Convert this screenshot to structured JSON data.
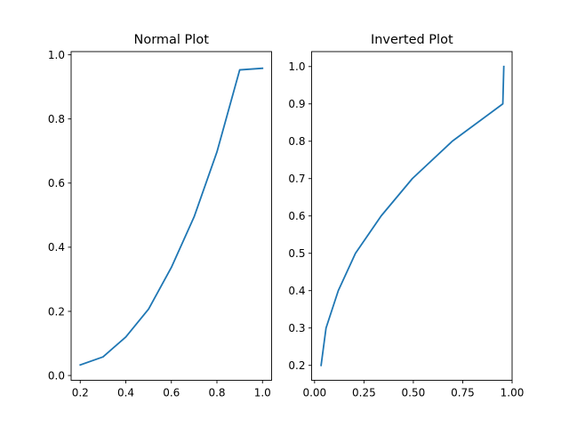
{
  "chart_data": [
    {
      "type": "line",
      "title": "Normal Plot",
      "xlabel": "",
      "ylabel": "",
      "xlim": [
        0.16,
        1.04
      ],
      "ylim": [
        -0.015,
        1.01
      ],
      "xticks": [
        0.2,
        0.4,
        0.6,
        0.8,
        1.0
      ],
      "xtick_labels": [
        "0.2",
        "0.4",
        "0.6",
        "0.8",
        "1.0"
      ],
      "yticks": [
        0.0,
        0.2,
        0.4,
        0.6,
        0.8,
        1.0
      ],
      "ytick_labels": [
        "0.0",
        "0.2",
        "0.4",
        "0.6",
        "0.8",
        "1.0"
      ],
      "grid": false,
      "series": [
        {
          "color": "#1f77b4",
          "x": [
            0.2,
            0.3,
            0.4,
            0.5,
            0.6,
            0.7,
            0.8,
            0.9,
            1.0
          ],
          "y": [
            0.033,
            0.058,
            0.12,
            0.207,
            0.337,
            0.495,
            0.697,
            0.953,
            0.958
          ]
        }
      ]
    },
    {
      "type": "line",
      "title": "Inverted Plot",
      "xlabel": "",
      "ylabel": "",
      "xlim": [
        -0.015,
        1.0
      ],
      "ylim": [
        0.16,
        1.04
      ],
      "xticks": [
        0.0,
        0.25,
        0.5,
        0.75,
        1.0
      ],
      "xtick_labels": [
        "0.00",
        "0.25",
        "0.50",
        "0.75",
        "1.00"
      ],
      "yticks": [
        0.2,
        0.3,
        0.4,
        0.5,
        0.6,
        0.7,
        0.8,
        0.9,
        1.0
      ],
      "ytick_labels": [
        "0.2",
        "0.3",
        "0.4",
        "0.5",
        "0.6",
        "0.7",
        "0.8",
        "0.9",
        "1.0"
      ],
      "grid": false,
      "series": [
        {
          "color": "#1f77b4",
          "x": [
            0.033,
            0.058,
            0.12,
            0.207,
            0.337,
            0.495,
            0.697,
            0.953,
            0.958
          ],
          "y": [
            0.2,
            0.3,
            0.4,
            0.5,
            0.6,
            0.7,
            0.8,
            0.9,
            1.0
          ]
        }
      ]
    }
  ]
}
